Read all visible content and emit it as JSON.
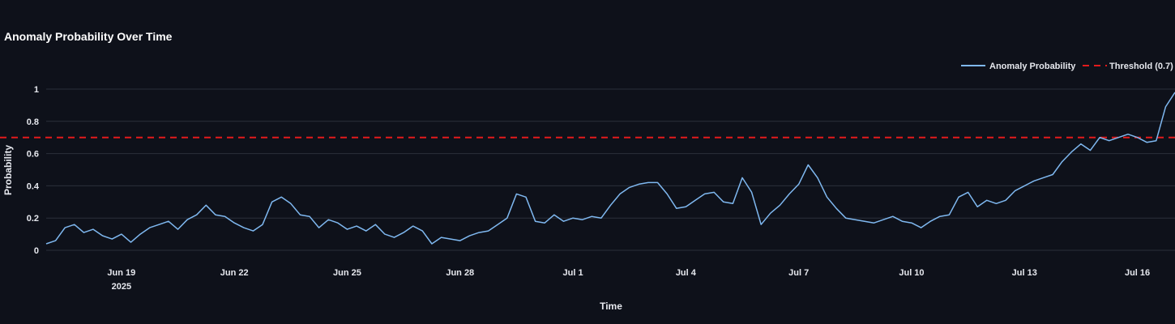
{
  "colors": {
    "background": "#0e111a",
    "grid": "#2b303b",
    "series": "#7fb8f0",
    "threshold": "#e31a1c",
    "text": "#e6e8ee"
  },
  "chart_data": {
    "type": "line",
    "title": "Anomaly Probability Over Time",
    "xlabel": "Time",
    "ylabel": "Probability",
    "ylim": [
      0,
      1
    ],
    "xlim": [
      "2025-06-17",
      "2025-07-17"
    ],
    "y_ticks": [
      "0",
      "0.2",
      "0.4",
      "0.6",
      "0.8",
      "1"
    ],
    "x_ticks": [
      {
        "date": "2025-06-19",
        "label": "Jun 19",
        "sublabel": "2025"
      },
      {
        "date": "2025-06-22",
        "label": "Jun 22"
      },
      {
        "date": "2025-06-25",
        "label": "Jun 25"
      },
      {
        "date": "2025-06-28",
        "label": "Jun 28"
      },
      {
        "date": "2025-07-01",
        "label": "Jul 1"
      },
      {
        "date": "2025-07-04",
        "label": "Jul 4"
      },
      {
        "date": "2025-07-07",
        "label": "Jul 7"
      },
      {
        "date": "2025-07-10",
        "label": "Jul 10"
      },
      {
        "date": "2025-07-13",
        "label": "Jul 13"
      },
      {
        "date": "2025-07-16",
        "label": "Jul 16"
      }
    ],
    "grid": true,
    "legend_position": "top-right",
    "series": [
      {
        "name": "Anomaly Probability",
        "color": "#7fb8f0",
        "x": [
          "2025-06-17T00:00",
          "2025-06-17T06:00",
          "2025-06-17T12:00",
          "2025-06-17T18:00",
          "2025-06-18T00:00",
          "2025-06-18T06:00",
          "2025-06-18T12:00",
          "2025-06-18T18:00",
          "2025-06-19T00:00",
          "2025-06-19T06:00",
          "2025-06-19T12:00",
          "2025-06-19T18:00",
          "2025-06-20T00:00",
          "2025-06-20T06:00",
          "2025-06-20T12:00",
          "2025-06-20T18:00",
          "2025-06-21T00:00",
          "2025-06-21T06:00",
          "2025-06-21T12:00",
          "2025-06-21T18:00",
          "2025-06-22T00:00",
          "2025-06-22T06:00",
          "2025-06-22T12:00",
          "2025-06-22T18:00",
          "2025-06-23T00:00",
          "2025-06-23T06:00",
          "2025-06-23T12:00",
          "2025-06-23T18:00",
          "2025-06-24T00:00",
          "2025-06-24T06:00",
          "2025-06-24T12:00",
          "2025-06-24T18:00",
          "2025-06-25T00:00",
          "2025-06-25T06:00",
          "2025-06-25T12:00",
          "2025-06-25T18:00",
          "2025-06-26T00:00",
          "2025-06-26T06:00",
          "2025-06-26T12:00",
          "2025-06-26T18:00",
          "2025-06-27T00:00",
          "2025-06-27T06:00",
          "2025-06-27T12:00",
          "2025-06-27T18:00",
          "2025-06-28T00:00",
          "2025-06-28T06:00",
          "2025-06-28T12:00",
          "2025-06-28T18:00",
          "2025-06-29T00:00",
          "2025-06-29T06:00",
          "2025-06-29T12:00",
          "2025-06-29T18:00",
          "2025-06-30T00:00",
          "2025-06-30T06:00",
          "2025-06-30T12:00",
          "2025-06-30T18:00",
          "2025-07-01T00:00",
          "2025-07-01T06:00",
          "2025-07-01T12:00",
          "2025-07-01T18:00",
          "2025-07-02T00:00",
          "2025-07-02T06:00",
          "2025-07-02T12:00",
          "2025-07-02T18:00",
          "2025-07-03T00:00",
          "2025-07-03T06:00",
          "2025-07-03T12:00",
          "2025-07-03T18:00",
          "2025-07-04T00:00",
          "2025-07-04T06:00",
          "2025-07-04T12:00",
          "2025-07-04T18:00",
          "2025-07-05T00:00",
          "2025-07-05T06:00",
          "2025-07-05T12:00",
          "2025-07-05T18:00",
          "2025-07-06T00:00",
          "2025-07-06T06:00",
          "2025-07-06T12:00",
          "2025-07-06T18:00",
          "2025-07-07T00:00",
          "2025-07-07T06:00",
          "2025-07-07T12:00",
          "2025-07-07T18:00",
          "2025-07-08T00:00",
          "2025-07-08T06:00",
          "2025-07-08T12:00",
          "2025-07-08T18:00",
          "2025-07-09T00:00",
          "2025-07-09T06:00",
          "2025-07-09T12:00",
          "2025-07-09T18:00",
          "2025-07-10T00:00",
          "2025-07-10T06:00",
          "2025-07-10T12:00",
          "2025-07-10T18:00",
          "2025-07-11T00:00",
          "2025-07-11T06:00",
          "2025-07-11T12:00",
          "2025-07-11T18:00",
          "2025-07-12T00:00",
          "2025-07-12T06:00",
          "2025-07-12T12:00",
          "2025-07-12T18:00",
          "2025-07-13T00:00",
          "2025-07-13T06:00",
          "2025-07-13T12:00",
          "2025-07-13T18:00",
          "2025-07-14T00:00",
          "2025-07-14T06:00",
          "2025-07-14T12:00",
          "2025-07-14T18:00",
          "2025-07-15T00:00",
          "2025-07-15T06:00",
          "2025-07-15T12:00",
          "2025-07-15T18:00",
          "2025-07-16T00:00",
          "2025-07-16T06:00",
          "2025-07-16T12:00",
          "2025-07-16T18:00",
          "2025-07-17T00:00"
        ],
        "values": [
          0.04,
          0.06,
          0.14,
          0.16,
          0.11,
          0.13,
          0.09,
          0.07,
          0.1,
          0.05,
          0.1,
          0.14,
          0.16,
          0.18,
          0.13,
          0.19,
          0.22,
          0.28,
          0.22,
          0.21,
          0.17,
          0.14,
          0.12,
          0.16,
          0.3,
          0.33,
          0.29,
          0.22,
          0.21,
          0.14,
          0.19,
          0.17,
          0.13,
          0.15,
          0.12,
          0.16,
          0.1,
          0.08,
          0.11,
          0.15,
          0.12,
          0.04,
          0.08,
          0.07,
          0.06,
          0.09,
          0.11,
          0.12,
          0.16,
          0.2,
          0.35,
          0.33,
          0.18,
          0.17,
          0.22,
          0.18,
          0.2,
          0.19,
          0.21,
          0.2,
          0.28,
          0.35,
          0.39,
          0.41,
          0.42,
          0.42,
          0.35,
          0.26,
          0.27,
          0.31,
          0.35,
          0.36,
          0.3,
          0.29,
          0.45,
          0.36,
          0.16,
          0.23,
          0.28,
          0.35,
          0.41,
          0.53,
          0.45,
          0.33,
          0.26,
          0.2,
          0.19,
          0.18,
          0.17,
          0.19,
          0.21,
          0.18,
          0.17,
          0.14,
          0.18,
          0.21,
          0.22,
          0.33,
          0.36,
          0.27,
          0.31,
          0.29,
          0.31,
          0.37,
          0.4,
          0.43,
          0.45,
          0.47,
          0.55,
          0.61,
          0.66,
          0.62,
          0.7,
          0.68,
          0.7,
          0.72,
          0.7,
          0.67,
          0.68,
          0.89,
          0.98
        ]
      }
    ],
    "threshold": {
      "name": "Threshold (0.7)",
      "value": 0.7,
      "color": "#e31a1c"
    }
  }
}
